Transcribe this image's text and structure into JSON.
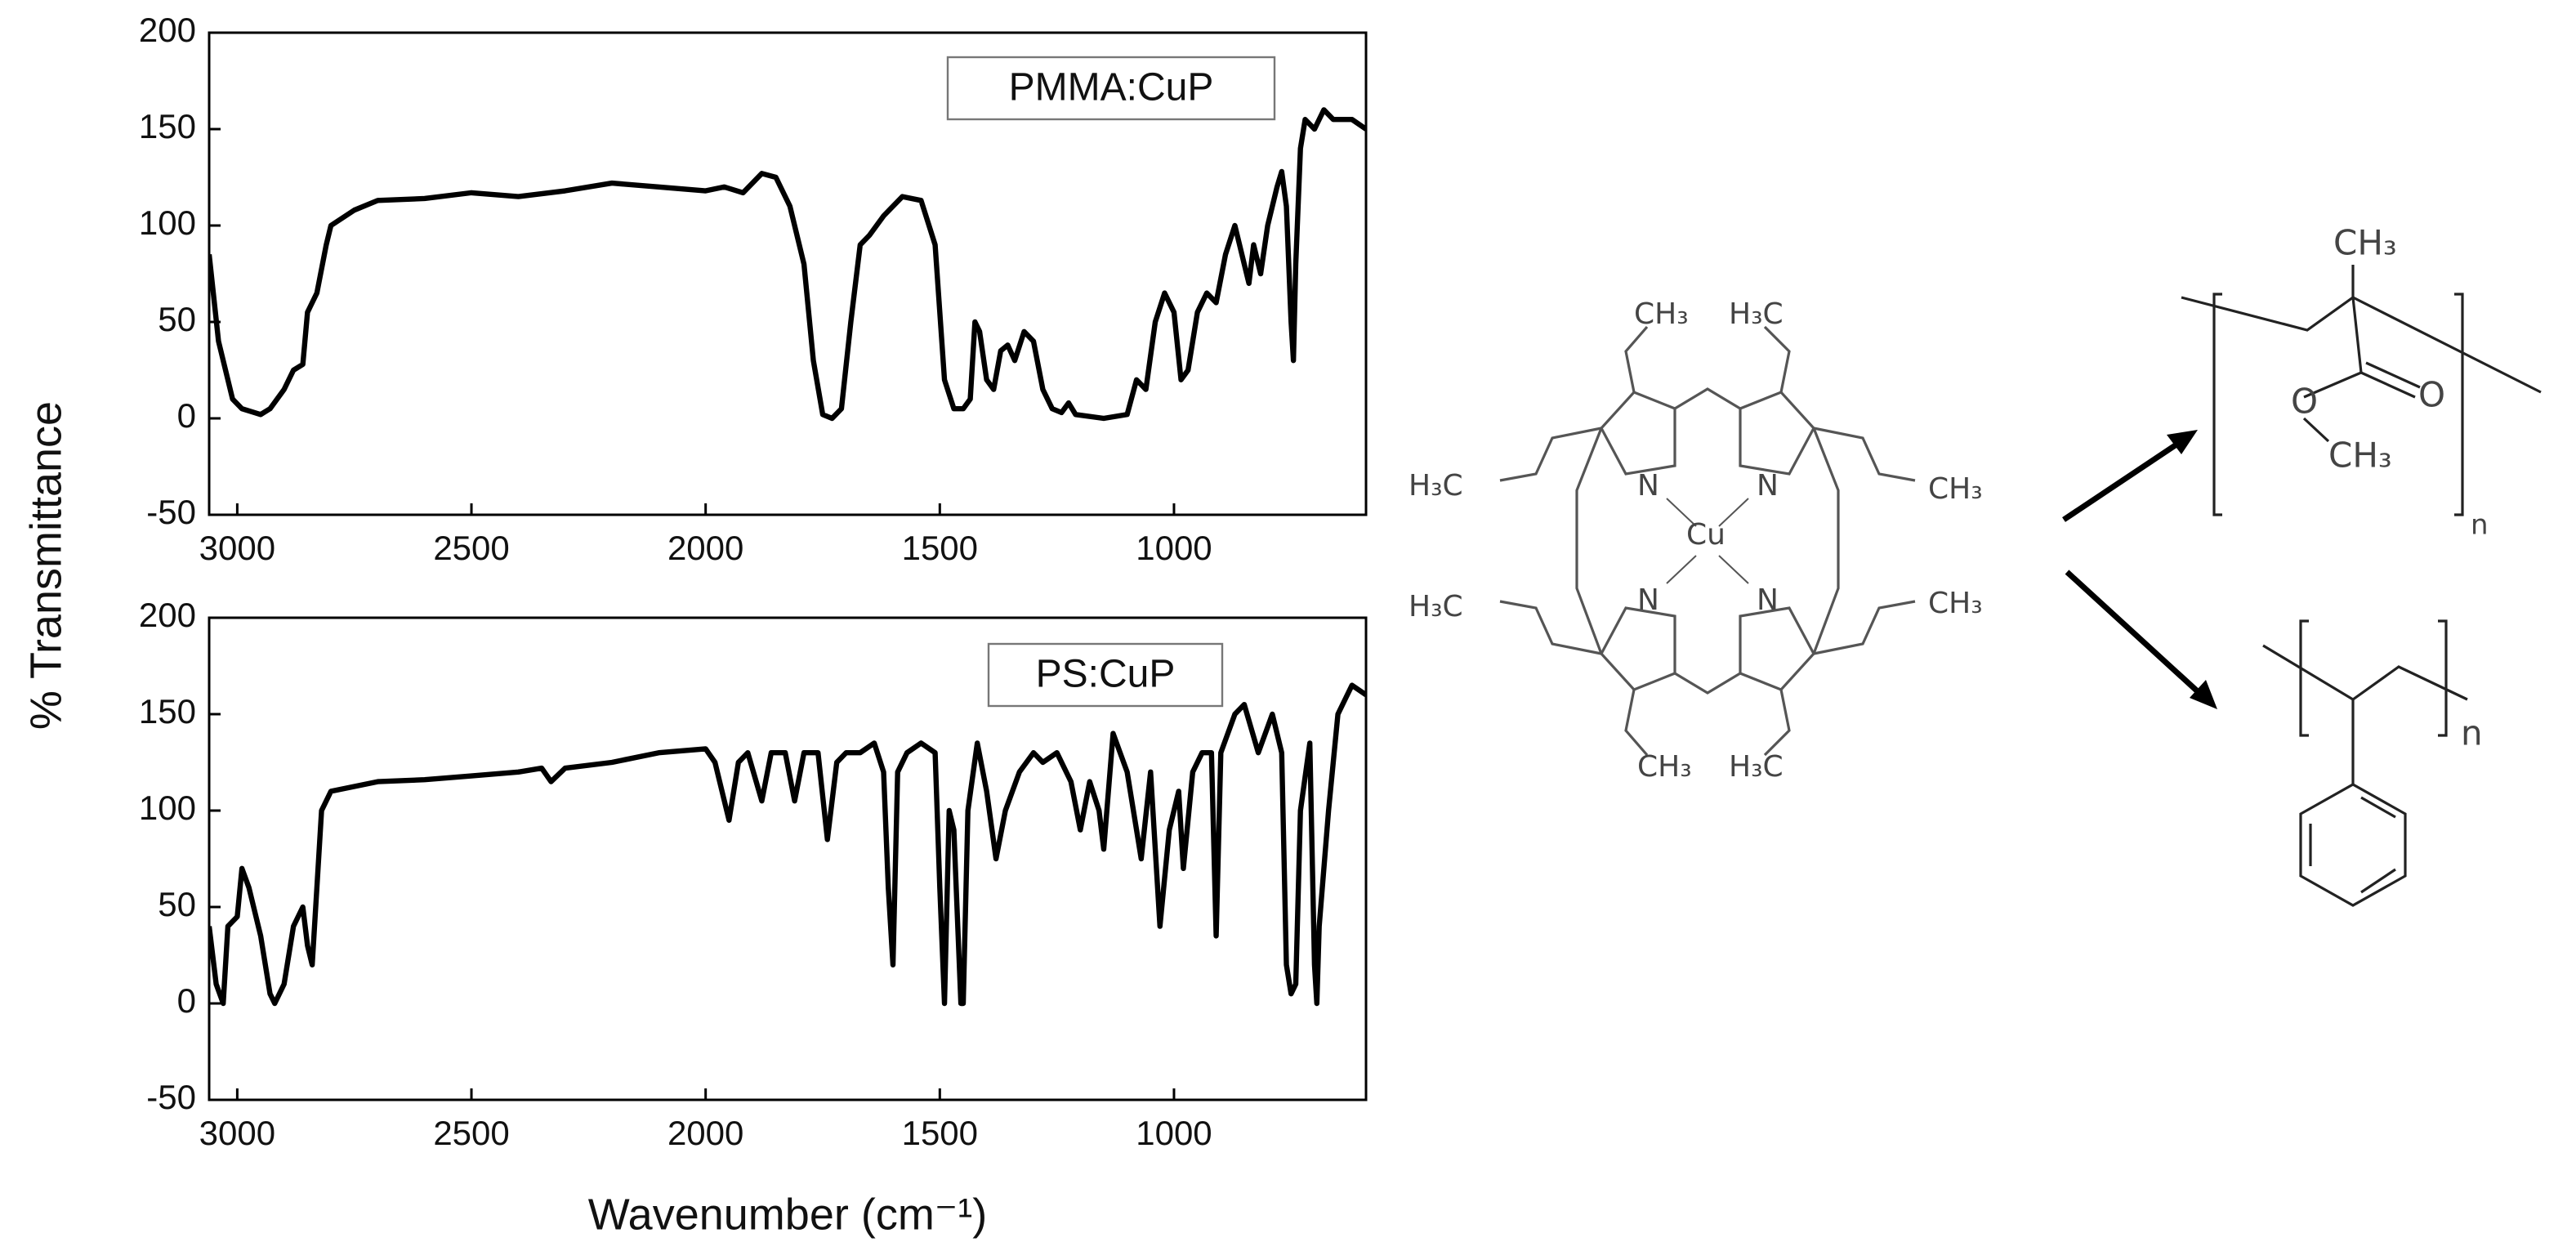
{
  "chart_data": [
    {
      "type": "line",
      "y_label": "% Transmittance",
      "xlim": [
        3060,
        590
      ],
      "xticks": [
        3000,
        2500,
        2000,
        1500,
        1000
      ],
      "ylim": [
        -50,
        200
      ],
      "yticks": [
        -50,
        0,
        50,
        100,
        150,
        200
      ],
      "series": [
        {
          "name": "PMMA:CuP",
          "color": "#000000",
          "x": [
            3060,
            3040,
            3010,
            2990,
            2950,
            2930,
            2900,
            2880,
            2860,
            2850,
            2840,
            2830,
            2810,
            2800,
            2750,
            2700,
            2600,
            2500,
            2400,
            2300,
            2200,
            2100,
            2000,
            1960,
            1920,
            1880,
            1850,
            1820,
            1790,
            1770,
            1750,
            1730,
            1710,
            1690,
            1670,
            1650,
            1620,
            1580,
            1540,
            1510,
            1490,
            1470,
            1450,
            1435,
            1425,
            1415,
            1400,
            1385,
            1370,
            1355,
            1340,
            1320,
            1300,
            1280,
            1260,
            1240,
            1225,
            1210,
            1150,
            1100,
            1080,
            1060,
            1040,
            1020,
            1000,
            985,
            970,
            950,
            930,
            910,
            890,
            870,
            850,
            840,
            830,
            815,
            800,
            780,
            770,
            760,
            750,
            745,
            740,
            730,
            720,
            700,
            680,
            660,
            620,
            590
          ],
          "values": [
            85,
            40,
            10,
            5,
            2,
            5,
            15,
            25,
            28,
            55,
            60,
            65,
            90,
            100,
            108,
            113,
            114,
            117,
            115,
            118,
            122,
            120,
            118,
            120,
            117,
            127,
            125,
            110,
            80,
            30,
            2,
            0,
            5,
            50,
            90,
            95,
            105,
            115,
            113,
            90,
            20,
            5,
            5,
            10,
            50,
            45,
            20,
            15,
            35,
            38,
            30,
            45,
            40,
            15,
            5,
            3,
            8,
            2,
            0,
            2,
            20,
            15,
            50,
            65,
            55,
            20,
            25,
            55,
            65,
            60,
            85,
            100,
            80,
            70,
            90,
            75,
            100,
            120,
            128,
            110,
            50,
            30,
            80,
            140,
            155,
            150,
            160,
            155,
            155,
            150
          ]
        }
      ]
    },
    {
      "type": "line",
      "x_label": "Wavenumber (cm⁻¹)",
      "xlim": [
        3060,
        590
      ],
      "xticks": [
        3000,
        2500,
        2000,
        1500,
        1000
      ],
      "ylim": [
        -50,
        200
      ],
      "yticks": [
        -50,
        0,
        50,
        100,
        150,
        200
      ],
      "series": [
        {
          "name": "PS:CuP",
          "color": "#000000",
          "x": [
            3060,
            3045,
            3030,
            3020,
            3000,
            2990,
            2975,
            2950,
            2930,
            2920,
            2900,
            2880,
            2860,
            2850,
            2840,
            2830,
            2820,
            2800,
            2700,
            2600,
            2500,
            2400,
            2350,
            2330,
            2300,
            2200,
            2100,
            2000,
            1980,
            1950,
            1930,
            1910,
            1880,
            1860,
            1830,
            1810,
            1790,
            1760,
            1740,
            1720,
            1700,
            1670,
            1640,
            1620,
            1610,
            1600,
            1590,
            1570,
            1540,
            1510,
            1500,
            1490,
            1480,
            1470,
            1455,
            1450,
            1440,
            1420,
            1400,
            1380,
            1360,
            1330,
            1300,
            1280,
            1250,
            1220,
            1200,
            1180,
            1160,
            1150,
            1130,
            1100,
            1080,
            1070,
            1050,
            1030,
            1010,
            990,
            980,
            960,
            940,
            920,
            910,
            900,
            870,
            850,
            820,
            790,
            770,
            760,
            750,
            740,
            730,
            710,
            700,
            695,
            690,
            670,
            650,
            620,
            590
          ],
          "values": [
            40,
            10,
            0,
            40,
            45,
            70,
            60,
            35,
            5,
            0,
            10,
            40,
            50,
            30,
            20,
            60,
            100,
            110,
            115,
            116,
            118,
            120,
            122,
            115,
            122,
            125,
            130,
            132,
            125,
            95,
            125,
            130,
            105,
            130,
            130,
            105,
            130,
            130,
            85,
            125,
            130,
            130,
            135,
            120,
            60,
            20,
            120,
            130,
            135,
            130,
            60,
            0,
            100,
            90,
            0,
            0,
            100,
            135,
            110,
            75,
            100,
            120,
            130,
            125,
            130,
            115,
            90,
            115,
            100,
            80,
            140,
            120,
            90,
            75,
            120,
            40,
            90,
            110,
            70,
            120,
            130,
            130,
            35,
            130,
            150,
            155,
            130,
            150,
            130,
            20,
            5,
            10,
            100,
            135,
            20,
            0,
            40,
            100,
            150,
            165,
            160
          ]
        }
      ]
    }
  ],
  "structures": {
    "porphyrin_labels": [
      "CH₃",
      "H₃C",
      "H₃C",
      "N",
      "N",
      "CH₃",
      "Cu",
      "H₃C",
      "N",
      "N",
      "CH₃",
      "CH₃",
      "H₃C"
    ],
    "pmma_labels": [
      "CH₃",
      "O",
      "O",
      "CH₃",
      "n"
    ],
    "ps_labels": [
      "n"
    ]
  }
}
